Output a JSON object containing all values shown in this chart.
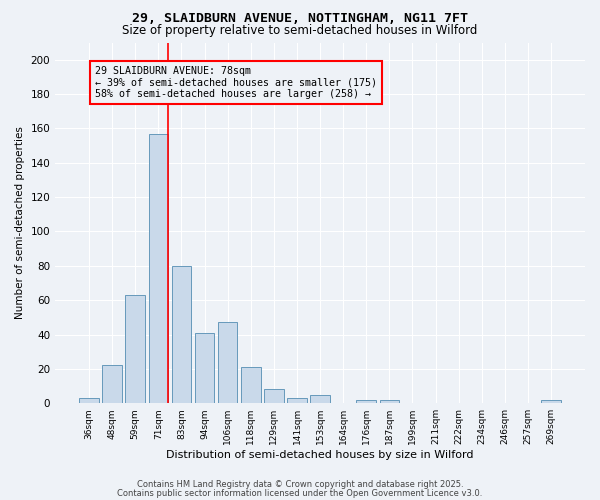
{
  "title1": "29, SLAIDBURN AVENUE, NOTTINGHAM, NG11 7FT",
  "title2": "Size of property relative to semi-detached houses in Wilford",
  "xlabel": "Distribution of semi-detached houses by size in Wilford",
  "ylabel": "Number of semi-detached properties",
  "bar_labels": [
    "36sqm",
    "48sqm",
    "59sqm",
    "71sqm",
    "83sqm",
    "94sqm",
    "106sqm",
    "118sqm",
    "129sqm",
    "141sqm",
    "153sqm",
    "164sqm",
    "176sqm",
    "187sqm",
    "199sqm",
    "211sqm",
    "222sqm",
    "234sqm",
    "246sqm",
    "257sqm",
    "269sqm"
  ],
  "bar_values": [
    3,
    22,
    63,
    157,
    80,
    41,
    47,
    21,
    8,
    3,
    5,
    0,
    2,
    2,
    0,
    0,
    0,
    0,
    0,
    0,
    2
  ],
  "bar_color": "#c9d9ea",
  "bar_edge_color": "#6699bb",
  "ylim": [
    0,
    210
  ],
  "yticks": [
    0,
    20,
    40,
    60,
    80,
    100,
    120,
    140,
    160,
    180,
    200
  ],
  "red_line_bin_index": 3,
  "annotation_title": "29 SLAIDBURN AVENUE: 78sqm",
  "annotation_line1": "← 39% of semi-detached houses are smaller (175)",
  "annotation_line2": "58% of semi-detached houses are larger (258) →",
  "footer1": "Contains HM Land Registry data © Crown copyright and database right 2025.",
  "footer2": "Contains public sector information licensed under the Open Government Licence v3.0.",
  "background_color": "#eef2f7"
}
